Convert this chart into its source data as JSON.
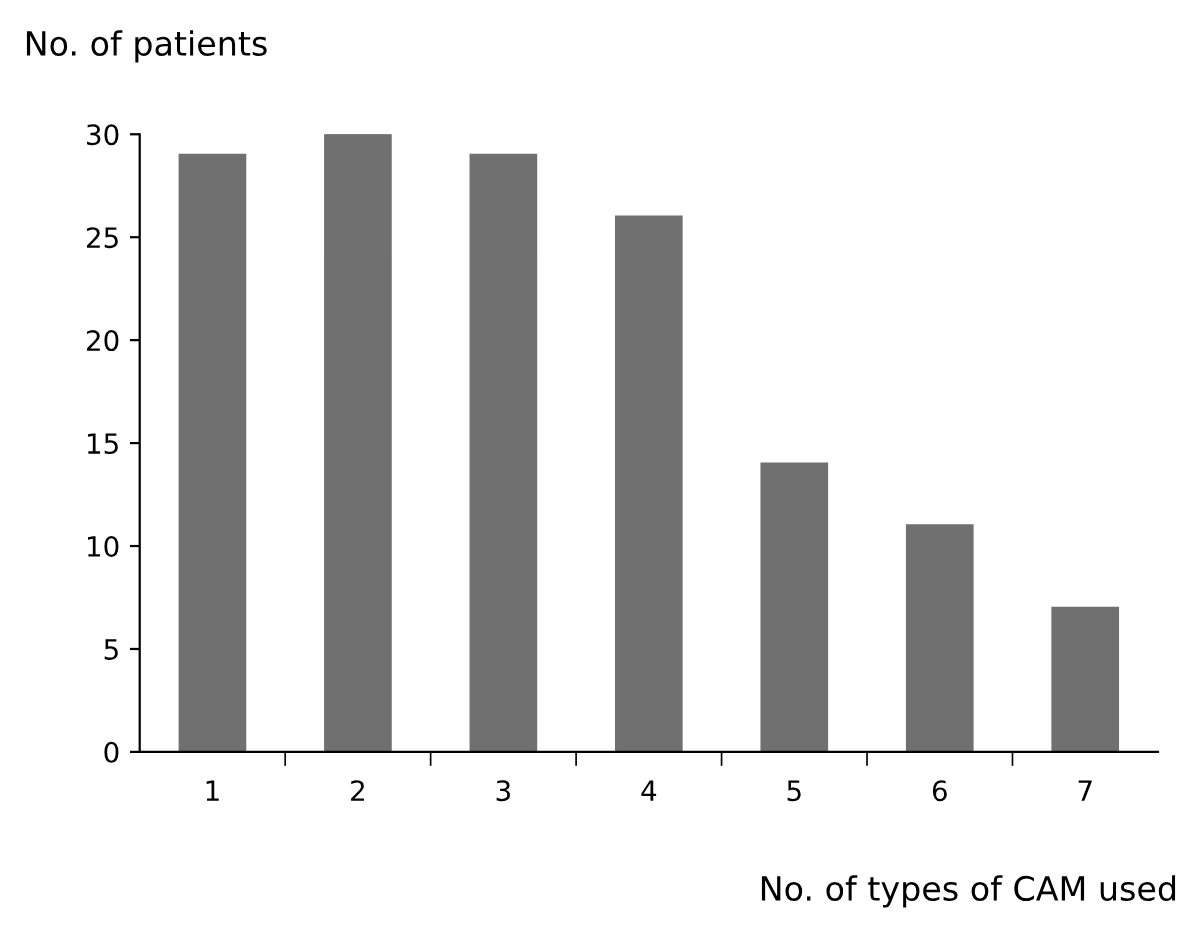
{
  "chart_data": {
    "type": "bar",
    "ylabel": "No. of patients",
    "xlabel": "No. of types of CAM used",
    "categories": [
      "1",
      "2",
      "3",
      "4",
      "5",
      "6",
      "7"
    ],
    "values": [
      29,
      30,
      29,
      26,
      14,
      11,
      7
    ],
    "color": "#707070",
    "ylim": [
      0,
      30
    ],
    "yticks": [
      0,
      5,
      10,
      15,
      20,
      25,
      30
    ],
    "grid": false,
    "legend": false
  }
}
